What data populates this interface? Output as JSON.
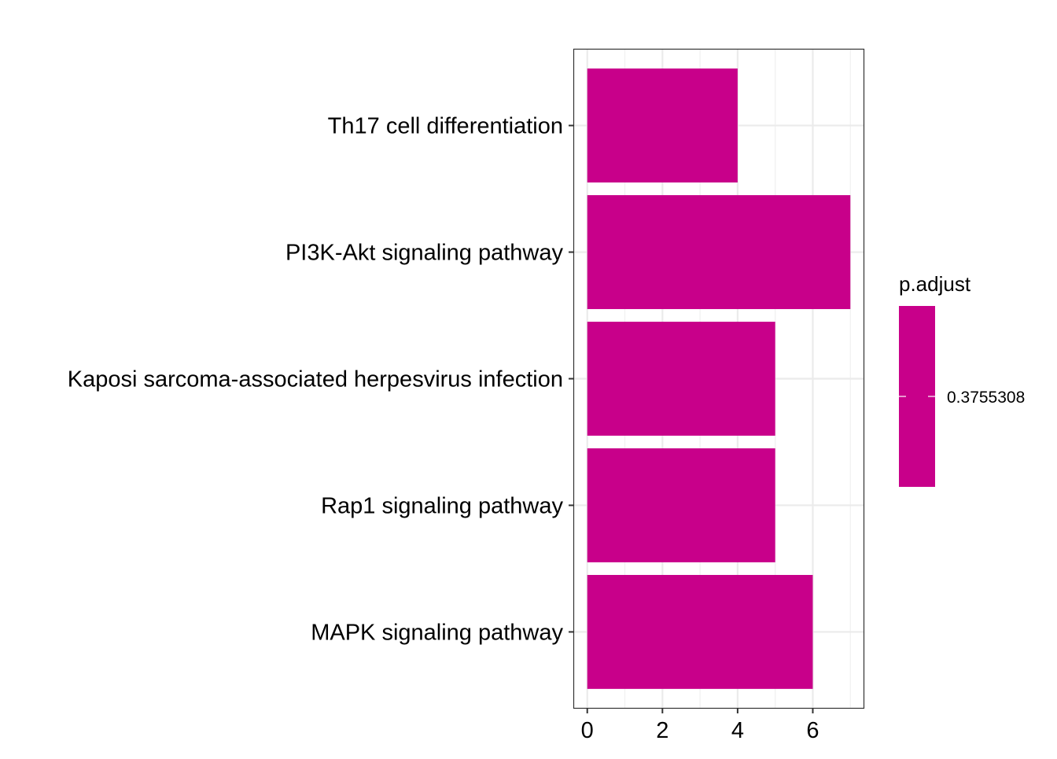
{
  "chart_data": {
    "type": "bar",
    "orientation": "horizontal",
    "categories": [
      "Th17 cell differentiation",
      "PI3K-Akt signaling pathway",
      "Kaposi sarcoma-associated herpesvirus infection",
      "Rap1 signaling pathway",
      "MAPK signaling pathway"
    ],
    "values": [
      4,
      7,
      5,
      5,
      6
    ],
    "xlim": [
      -0.35,
      7.35
    ],
    "xticks": [
      0,
      2,
      4,
      6
    ],
    "xtick_labels": [
      "0",
      "2",
      "4",
      "6"
    ],
    "grid": true,
    "bar_color": "#C8008A",
    "legend": {
      "title": "p.adjust",
      "placement": "right",
      "labels": [
        "0.3755308"
      ],
      "color": "#C8008A"
    }
  }
}
